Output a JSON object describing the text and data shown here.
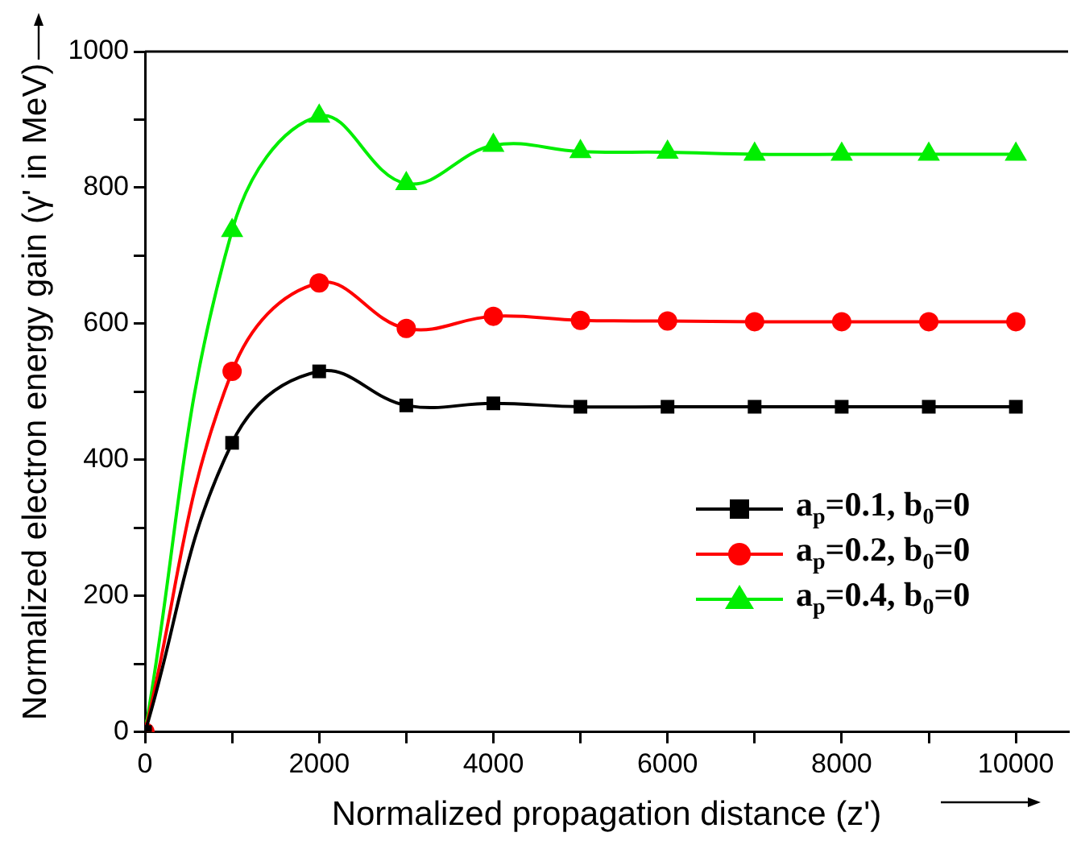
{
  "chart_data": {
    "type": "line",
    "xlabel": "Normalized propagation distance (z')",
    "ylabel": "Normalized electron energy gain (γ' in MeV)",
    "x": [
      0,
      1000,
      2000,
      3000,
      4000,
      5000,
      6000,
      7000,
      8000,
      9000,
      10000
    ],
    "series": [
      {
        "name": "a$_{p}$=0.1, b$_{0}$=0",
        "color": "#000000",
        "marker": "square",
        "values": [
          0,
          425,
          530,
          480,
          483,
          478,
          478,
          478,
          478,
          478,
          478
        ]
      },
      {
        "name": "a$_{p}$=0.2, b$_{0}$=0",
        "color": "#ff0000",
        "marker": "circle",
        "values": [
          0,
          530,
          660,
          593,
          611,
          605,
          604,
          603,
          603,
          603,
          603
        ]
      },
      {
        "name": "a$_{p}$=0.4, b$_{0}$=0",
        "color": "#00ee00",
        "marker": "triangle",
        "values": [
          0,
          737,
          905,
          806,
          862,
          853,
          852,
          849,
          849,
          849,
          849
        ]
      }
    ],
    "xlim": [
      0,
      10600
    ],
    "xticks": [
      0,
      {
        "value": 1000,
        "label": null
      },
      2000,
      {
        "value": 3000,
        "label": null
      },
      4000,
      {
        "value": 5000,
        "label": null
      },
      6000,
      {
        "value": 7000,
        "label": null
      },
      8000,
      {
        "value": 9000,
        "label": null
      },
      10000
    ],
    "ylim": [
      0,
      1000
    ],
    "yticks": [
      0,
      {
        "value": 100,
        "label": null
      },
      200,
      {
        "value": 300,
        "label": null
      },
      400,
      {
        "value": 500,
        "label": null
      },
      600,
      {
        "value": 700,
        "label": null
      },
      800,
      {
        "value": 900,
        "label": null
      },
      1000
    ],
    "grid": false,
    "legend": "bottom right",
    "line_style": "solid"
  }
}
